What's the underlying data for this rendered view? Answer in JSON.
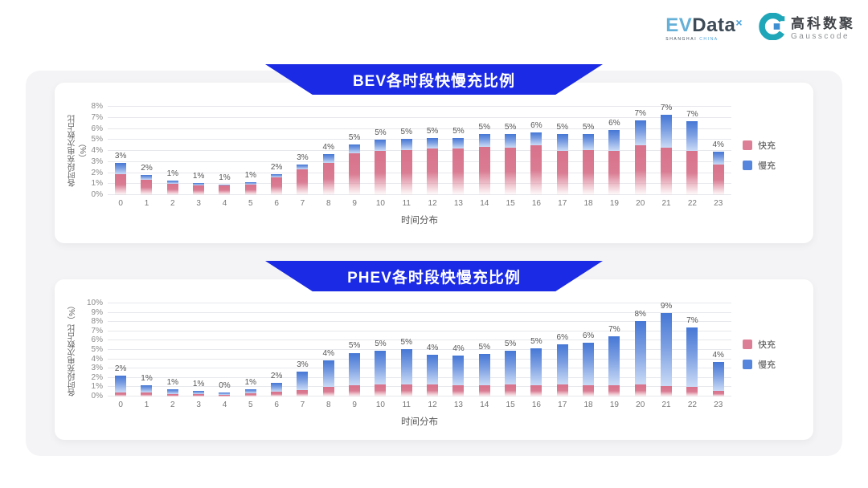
{
  "header": {
    "evdata": {
      "ev": "EV",
      "data": "Data",
      "sup": "×",
      "sub1": "SHANGHAI",
      "sub2": "CHINA"
    },
    "gausscode": {
      "cn": "高科数聚",
      "en": "Gausscode"
    }
  },
  "colors": {
    "banner_blue": "#1b2ae4",
    "fast_pink": "#dc7f96",
    "slow_blue": "#5585dc",
    "panel_bg": "#f4f4f6",
    "gridline": "#e7e8ec"
  },
  "chart_data": [
    {
      "type": "bar",
      "stacked": true,
      "title": "BEV各时段快慢充比例",
      "xlabel": "时间分布",
      "ylabel": "各时段充电次数占比（%）",
      "ymax": 8,
      "ylim": [
        0,
        8
      ],
      "grid": true,
      "legend_position": "right",
      "yticks": [
        "0%",
        "1%",
        "2%",
        "3%",
        "4%",
        "5%",
        "6%",
        "7%",
        "8%"
      ],
      "categories": [
        "0",
        "1",
        "2",
        "3",
        "4",
        "5",
        "6",
        "7",
        "8",
        "9",
        "10",
        "11",
        "12",
        "13",
        "14",
        "15",
        "16",
        "17",
        "18",
        "19",
        "20",
        "21",
        "22",
        "23"
      ],
      "series": [
        {
          "name": "快充",
          "color": "#dc7f96",
          "values": [
            1.9,
            1.4,
            1.0,
            0.9,
            0.85,
            0.95,
            1.6,
            2.3,
            2.9,
            3.8,
            4.0,
            4.1,
            4.2,
            4.2,
            4.4,
            4.3,
            4.5,
            4.0,
            4.1,
            4.0,
            4.5,
            4.3,
            4.0,
            2.8
          ]
        },
        {
          "name": "慢充",
          "color": "#5585dc",
          "values": [
            1.0,
            0.4,
            0.3,
            0.2,
            0.1,
            0.2,
            0.3,
            0.5,
            0.8,
            0.8,
            1.0,
            1.0,
            1.0,
            1.0,
            1.1,
            1.2,
            1.2,
            1.5,
            1.4,
            1.9,
            2.3,
            3.0,
            2.7,
            1.1
          ]
        }
      ],
      "total_labels": [
        "3%",
        "2%",
        "1%",
        "1%",
        "1%",
        "1%",
        "2%",
        "3%",
        "4%",
        "5%",
        "5%",
        "5%",
        "5%",
        "5%",
        "5%",
        "5%",
        "6%",
        "5%",
        "5%",
        "6%",
        "7%",
        "7%",
        "7%",
        "4%"
      ]
    },
    {
      "type": "bar",
      "stacked": true,
      "title": "PHEV各时段快慢充比例",
      "xlabel": "时间分布",
      "ylabel": "各时段充电次数占比（%）",
      "ymax": 10,
      "ylim": [
        0,
        10
      ],
      "grid": true,
      "legend_position": "right",
      "yticks": [
        "0%",
        "1%",
        "2%",
        "3%",
        "4%",
        "5%",
        "6%",
        "7%",
        "8%",
        "9%",
        "10%"
      ],
      "categories": [
        "0",
        "1",
        "2",
        "3",
        "4",
        "5",
        "6",
        "7",
        "8",
        "9",
        "10",
        "11",
        "12",
        "13",
        "14",
        "15",
        "16",
        "17",
        "18",
        "19",
        "20",
        "21",
        "22",
        "23"
      ],
      "series": [
        {
          "name": "快充",
          "color": "#dc7f96",
          "values": [
            0.45,
            0.4,
            0.3,
            0.25,
            0.2,
            0.35,
            0.5,
            0.7,
            1.0,
            1.2,
            1.3,
            1.3,
            1.3,
            1.2,
            1.2,
            1.3,
            1.2,
            1.3,
            1.2,
            1.2,
            1.3,
            1.1,
            1.0,
            0.6
          ]
        },
        {
          "name": "慢充",
          "color": "#5585dc",
          "values": [
            1.75,
            0.8,
            0.45,
            0.35,
            0.25,
            0.45,
            1.0,
            2.0,
            2.9,
            3.5,
            3.6,
            3.8,
            3.2,
            3.2,
            3.4,
            3.6,
            4.0,
            4.3,
            4.6,
            5.3,
            6.8,
            7.9,
            6.4,
            3.1
          ]
        }
      ],
      "total_labels": [
        "2%",
        "1%",
        "1%",
        "1%",
        "0%",
        "1%",
        "2%",
        "3%",
        "4%",
        "5%",
        "5%",
        "5%",
        "4%",
        "4%",
        "5%",
        "5%",
        "5%",
        "6%",
        "6%",
        "7%",
        "8%",
        "9%",
        "7%",
        "4%"
      ]
    }
  ]
}
